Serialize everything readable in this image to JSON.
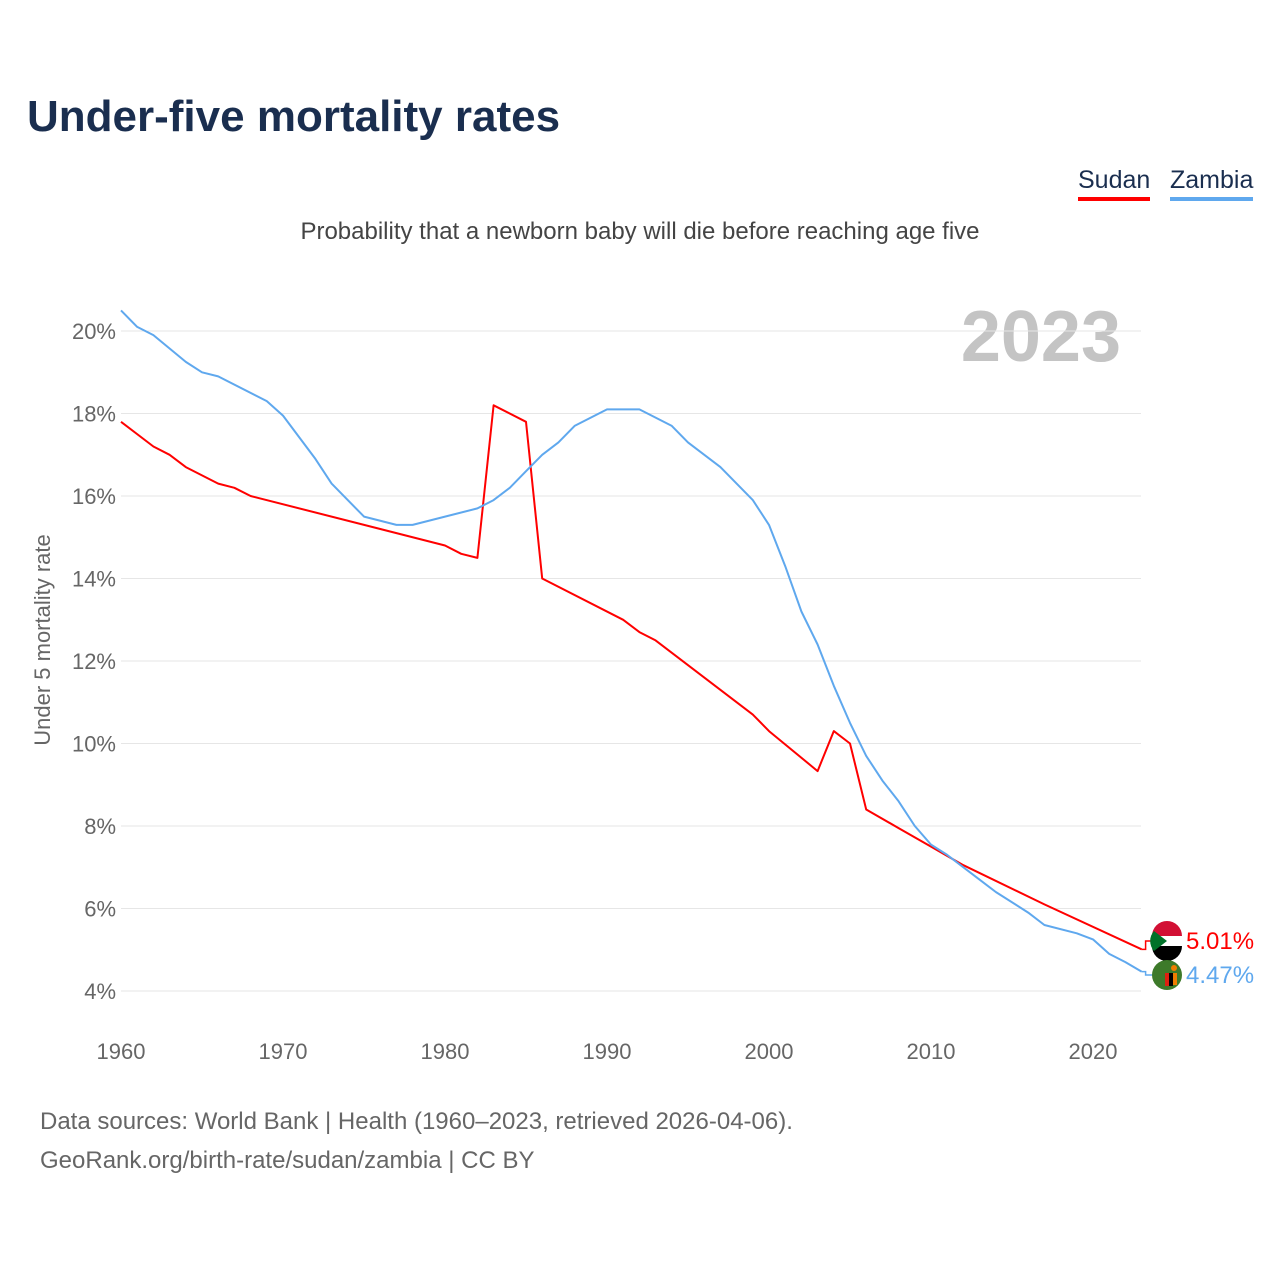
{
  "chart_data": {
    "type": "line",
    "title": "Under-five mortality rates",
    "subtitle": "Probability that a newborn baby will die before reaching age five",
    "ylabel": "Under 5 mortality rate",
    "xlabel": "",
    "year_label": "2023",
    "xlim": [
      1960,
      2023
    ],
    "ylim": [
      3.5,
      21
    ],
    "x_ticks": [
      1960,
      1970,
      1980,
      1990,
      2000,
      2010,
      2020
    ],
    "x_tick_labels": [
      "1960",
      "1970",
      "1980",
      "1990",
      "2000",
      "2010",
      "2020"
    ],
    "y_ticks": [
      4,
      6,
      8,
      10,
      12,
      14,
      16,
      18,
      20
    ],
    "y_tick_labels": [
      "4%",
      "6%",
      "8%",
      "10%",
      "12%",
      "14%",
      "16%",
      "18%",
      "20%"
    ],
    "grid": true,
    "legend_position": "top-right",
    "series": [
      {
        "name": "Sudan",
        "color": "#ff0000",
        "end_label": "5.01%",
        "x": [
          1960,
          1962,
          1963,
          1964,
          1966,
          1967,
          1968,
          1980,
          1981,
          1982,
          1983,
          1985,
          1986,
          1991,
          1992,
          1993,
          1999,
          2000,
          2003,
          2004,
          2005,
          2006,
          2008,
          2010,
          2012,
          2017,
          2023
        ],
        "y": [
          17.8,
          17.2,
          17.0,
          16.7,
          16.3,
          16.2,
          16.0,
          14.8,
          14.6,
          14.5,
          18.2,
          17.8,
          14.0,
          13.0,
          12.7,
          12.5,
          10.7,
          10.3,
          9.33,
          10.3,
          10.0,
          8.4,
          7.95,
          7.5,
          7.05,
          6.1,
          5.01
        ]
      },
      {
        "name": "Zambia",
        "color": "#5fa8ee",
        "end_label": "4.47%",
        "x": [
          1960,
          1961,
          1962,
          1964,
          1965,
          1966,
          1969,
          1970,
          1972,
          1973,
          1975,
          1977,
          1978,
          1980,
          1982,
          1983,
          1984,
          1985,
          1986,
          1987,
          1988,
          1990,
          1992,
          1994,
          1995,
          1997,
          1999,
          2000,
          2001,
          2002,
          2003,
          2004,
          2005,
          2006,
          2007,
          2008,
          2009,
          2010,
          2011,
          2012,
          2014,
          2016,
          2017,
          2019,
          2020,
          2021,
          2022,
          2023
        ],
        "y": [
          20.5,
          20.1,
          19.9,
          19.25,
          19.0,
          18.9,
          18.3,
          17.95,
          16.9,
          16.3,
          15.5,
          15.3,
          15.3,
          15.5,
          15.7,
          15.9,
          16.2,
          16.6,
          17.0,
          17.3,
          17.7,
          18.1,
          18.1,
          17.7,
          17.3,
          16.7,
          15.9,
          15.3,
          14.3,
          13.2,
          12.4,
          11.4,
          10.5,
          9.7,
          9.1,
          8.6,
          8.0,
          7.55,
          7.3,
          7.0,
          6.4,
          5.9,
          5.6,
          5.4,
          5.25,
          4.9,
          4.7,
          4.47
        ]
      }
    ],
    "source_line1": "Data sources: World Bank | Health (1960–2023, retrieved 2026-04-06).",
    "source_line2": "GeoRank.org/birth-rate/sudan/zambia | CC BY"
  }
}
